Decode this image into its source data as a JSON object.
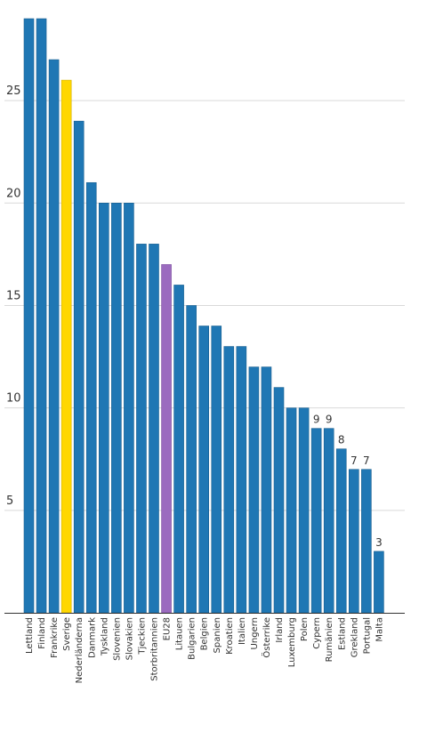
{
  "chart_data": {
    "type": "bar",
    "categories": [
      "Lettland",
      "Finland",
      "Frankrike",
      "Sverige",
      "Nederländerna",
      "Danmark",
      "Tyskland",
      "Slovenien",
      "Slovakien",
      "Tjeckien",
      "Storbritannien",
      "EU28",
      "Litauen",
      "Bulgarien",
      "Belgien",
      "Spanien",
      "Kroatien",
      "Italien",
      "Ungern",
      "Österrike",
      "Irland",
      "Luxemburg",
      "Polen",
      "Cypern",
      "Rumänien",
      "Estland",
      "Grekland",
      "Portugal",
      "Malta"
    ],
    "values": [
      29,
      29,
      27,
      26,
      24,
      21,
      20,
      20,
      20,
      18,
      18,
      17,
      16,
      15,
      14,
      14,
      13,
      13,
      12,
      12,
      11,
      10,
      10,
      9,
      9,
      8,
      7,
      7,
      3
    ],
    "data_labels": [
      "",
      "",
      "",
      "",
      "",
      "",
      "",
      "",
      "",
      "",
      "",
      "",
      "",
      "",
      "",
      "",
      "",
      "",
      "",
      "",
      "",
      "",
      "",
      "9",
      "9",
      "8",
      "7",
      "7",
      "3"
    ],
    "yticks": [
      5,
      10,
      15,
      20,
      25
    ],
    "ylim": [
      0,
      29
    ],
    "grid": "horizontal",
    "legend": "none",
    "colors": {
      "default": "#1f77b4",
      "default_stroke": "#1a5f8f",
      "highlight": "#ffd700",
      "highlight_stroke": "#d4b000",
      "eu": "#9b6bbf",
      "eu_stroke": "#7d4f9f"
    },
    "highlight_categories": {
      "Sverige": "highlight",
      "EU28": "eu"
    }
  }
}
